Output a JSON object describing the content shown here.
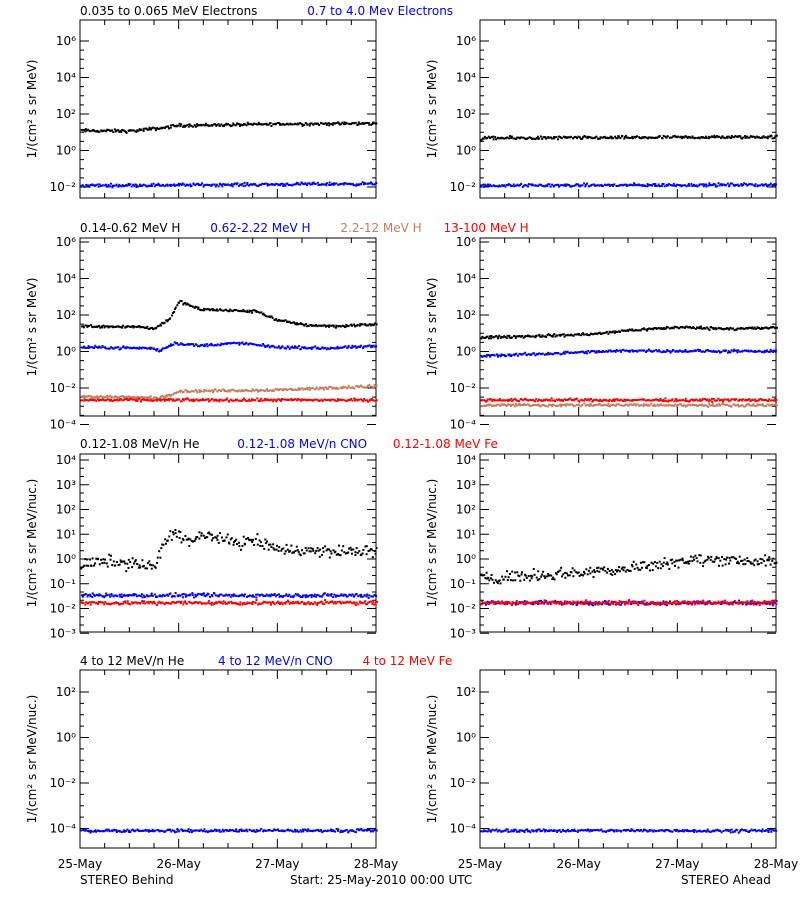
{
  "colors": {
    "black": "#000000",
    "blue": "#0000ff",
    "tan": "#c08060",
    "red": "#ff0000"
  },
  "rows": [
    {
      "legend": [
        {
          "text": "0.035 to 0.065 MeV Electrons",
          "color": "#000000"
        },
        {
          "text": "0.7 to 4.0 Mev Electrons",
          "color": "#0000ff"
        }
      ],
      "ylabel": "1/(cm² s sr MeV)",
      "ticks": [
        "10⁶",
        "10⁴",
        "10²",
        "10⁰",
        "10⁻²"
      ]
    },
    {
      "legend": [
        {
          "text": "0.14-0.62 MeV H",
          "color": "#000000"
        },
        {
          "text": "0.62-2.22 MeV H",
          "color": "#0000ff"
        },
        {
          "text": "2.2-12 MeV H",
          "color": "#c08060"
        },
        {
          "text": "13-100 MeV H",
          "color": "#ff0000"
        }
      ],
      "ylabel": "1/(cm² s sr MeV)",
      "ticks": [
        "10⁶",
        "10⁴",
        "10²",
        "10⁰",
        "10⁻²",
        "10⁻⁴"
      ]
    },
    {
      "legend": [
        {
          "text": "0.12-1.08 MeV/n He",
          "color": "#000000"
        },
        {
          "text": "0.12-1.08 MeV/n CNO",
          "color": "#0000ff"
        },
        {
          "text": "0.12-1.08 MeV Fe",
          "color": "#ff0000"
        }
      ],
      "ylabel": "1/(cm² s sr MeV/nuc.)",
      "ticks": [
        "10⁴",
        "10³",
        "10²",
        "10¹",
        "10⁰",
        "10⁻¹",
        "10⁻²",
        "10⁻³"
      ]
    },
    {
      "legend": [
        {
          "text": "4 to 12 MeV/n He",
          "color": "#000000"
        },
        {
          "text": "4 to 12 MeV/n CNO",
          "color": "#0000ff"
        },
        {
          "text": "4 to 12 MeV Fe",
          "color": "#ff0000"
        }
      ],
      "ylabel": "1/(cm² s sr MeV/nuc.)",
      "ticks": [
        "10²",
        "10⁰",
        "10⁻²",
        "10⁻⁴"
      ]
    }
  ],
  "x_ticks": [
    "25-May",
    "26-May",
    "27-May",
    "28-May"
  ],
  "footer": {
    "left": "STEREO Behind",
    "center": "Start: 25-May-2010 00:00 UTC",
    "right": "STEREO Ahead"
  },
  "chart_data": [
    {
      "type": "scatter",
      "yscale": "log",
      "ylim": [
        0.004,
        8000000
      ],
      "xlim": [
        0,
        3
      ],
      "series": [
        {
          "name": "0.035 to 0.065 MeV Electrons",
          "color": "#000000",
          "x": [
            0,
            0.5,
            0.8,
            1.0,
            1.5,
            2.0,
            3.0
          ],
          "y": [
            15,
            14,
            20,
            28,
            30,
            33,
            35
          ]
        },
        {
          "name": "0.7 to 4.0 Mev Electrons",
          "color": "#0000ff",
          "x": [
            0,
            3
          ],
          "y": [
            0.02,
            0.025
          ]
        }
      ]
    },
    {
      "type": "scatter",
      "yscale": "log",
      "ylim": [
        0.004,
        8000000
      ],
      "xlim": [
        0,
        3
      ],
      "series": [
        {
          "color": "#000000",
          "x": [
            0,
            3
          ],
          "y": [
            6,
            7
          ]
        },
        {
          "color": "#0000ff",
          "x": [
            0,
            3
          ],
          "y": [
            0.02,
            0.022
          ]
        }
      ]
    },
    {
      "type": "scatter",
      "yscale": "log",
      "ylim": [
        3e-05,
        1000000
      ],
      "xlim": [
        0,
        3
      ],
      "series": [
        {
          "name": "0.14-0.62 MeV H",
          "color": "#000000",
          "x": [
            0,
            0.6,
            0.75,
            0.9,
            1.0,
            1.2,
            1.5,
            1.8,
            2.0,
            2.3,
            2.6,
            3.0
          ],
          "y": [
            7,
            6.5,
            5,
            20,
            200,
            70,
            60,
            50,
            15,
            8,
            7,
            9
          ]
        },
        {
          "name": "0.62-2.22 MeV H",
          "color": "#0000ff",
          "x": [
            0,
            0.7,
            0.8,
            0.95,
            1.2,
            1.6,
            2.0,
            2.5,
            3.0
          ],
          "y": [
            0.4,
            0.35,
            0.25,
            0.7,
            0.5,
            0.7,
            0.4,
            0.35,
            0.45
          ]
        },
        {
          "name": "2.2-12 MeV H",
          "color": "#c08060",
          "x": [
            0,
            0.8,
            1.0,
            2.0,
            3.0
          ],
          "y": [
            0.0005,
            0.0004,
            0.001,
            0.0012,
            0.002
          ]
        },
        {
          "name": "13-100 MeV H",
          "color": "#ff0000",
          "x": [
            0,
            3
          ],
          "y": [
            0.0003,
            0.0003
          ]
        }
      ]
    },
    {
      "type": "scatter",
      "yscale": "log",
      "ylim": [
        3e-05,
        1000000
      ],
      "xlim": [
        0,
        3
      ],
      "series": [
        {
          "color": "#000000",
          "x": [
            0,
            0.8,
            1.2,
            1.5,
            2.0,
            2.5,
            3.0
          ],
          "y": [
            1.5,
            2,
            2.5,
            4,
            6,
            5,
            5.5
          ]
        },
        {
          "color": "#0000ff",
          "x": [
            0,
            1.5,
            3.0
          ],
          "y": [
            0.12,
            0.25,
            0.22
          ]
        },
        {
          "color": "#c08060",
          "x": [
            0,
            3
          ],
          "y": [
            0.00015,
            0.00015
          ]
        },
        {
          "color": "#ff0000",
          "x": [
            0,
            3
          ],
          "y": [
            0.0003,
            0.0003
          ]
        }
      ]
    },
    {
      "type": "scatter",
      "yscale": "log",
      "ylim": [
        0.0006,
        10000
      ],
      "xlim": [
        0,
        3
      ],
      "series": [
        {
          "name": "0.12-1.08 MeV/n He",
          "color": "#000000",
          "x": [
            0,
            0.3,
            0.6,
            0.75,
            0.85,
            0.95,
            1.1,
            1.3,
            1.5,
            1.8,
            2.0,
            2.5,
            3.0
          ],
          "y": [
            0.35,
            0.5,
            0.35,
            0.3,
            3,
            8,
            3,
            6,
            3,
            3,
            1.5,
            1.2,
            1.2
          ]
        },
        {
          "name": "0.12-1.08 MeV/n CNO",
          "color": "#0000ff",
          "x": [
            0,
            3
          ],
          "y": [
            0.02,
            0.02
          ]
        },
        {
          "name": "0.12-1.08 MeV Fe",
          "color": "#ff0000",
          "x": [
            0,
            3
          ],
          "y": [
            0.01,
            0.01
          ]
        }
      ]
    },
    {
      "type": "scatter",
      "yscale": "log",
      "ylim": [
        0.0006,
        10000
      ],
      "xlim": [
        0,
        3
      ],
      "series": [
        {
          "color": "#000000",
          "x": [
            0,
            0.8,
            1.5,
            2.0,
            2.5,
            3.0
          ],
          "y": [
            0.1,
            0.15,
            0.25,
            0.5,
            0.6,
            0.4
          ]
        },
        {
          "color": "#0000ff",
          "x": [
            0,
            3
          ],
          "y": [
            0.01,
            0.01
          ]
        },
        {
          "color": "#ff0000",
          "x": [
            0,
            3
          ],
          "y": [
            0.01,
            0.01
          ]
        }
      ]
    },
    {
      "type": "scatter",
      "yscale": "log",
      "ylim": [
        1e-05,
        50000
      ],
      "xlim": [
        0,
        3
      ],
      "series": [
        {
          "color": "#0000ff",
          "x": [
            0,
            3
          ],
          "y": [
            0.0001,
            0.0001
          ]
        }
      ]
    },
    {
      "type": "scatter",
      "yscale": "log",
      "ylim": [
        1e-05,
        50000
      ],
      "xlim": [
        0,
        3
      ],
      "series": [
        {
          "color": "#0000ff",
          "x": [
            0,
            3
          ],
          "y": [
            0.0001,
            0.0001
          ]
        }
      ]
    }
  ]
}
